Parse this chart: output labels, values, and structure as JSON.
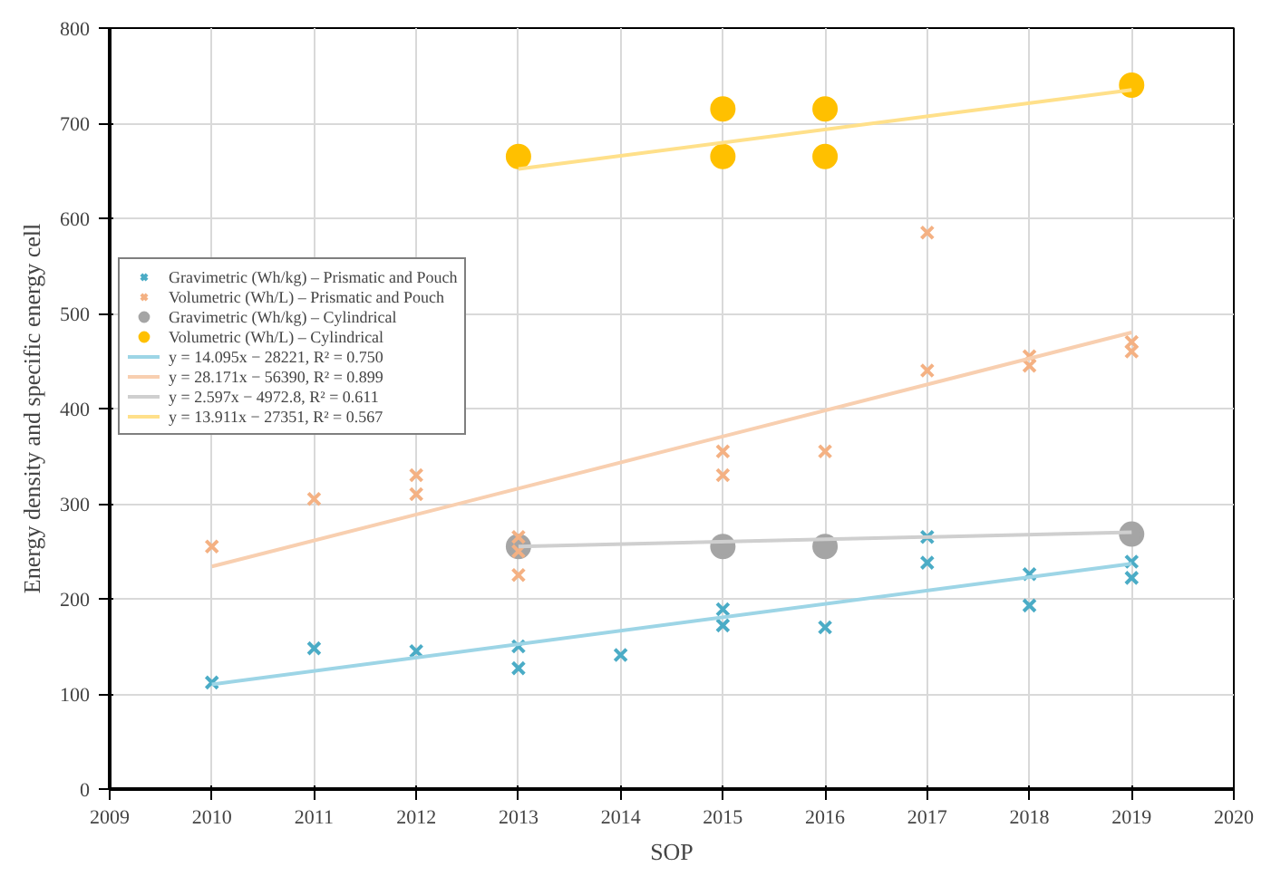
{
  "chart_data": {
    "type": "scatter",
    "xlabel": "SOP",
    "ylabel": "Energy density and specific energy cell",
    "xlim": [
      2009,
      2020
    ],
    "xticks": [
      2009,
      2010,
      2011,
      2012,
      2013,
      2014,
      2015,
      2016,
      2017,
      2018,
      2019,
      2020
    ],
    "ylim": [
      0,
      800
    ],
    "yticks": [
      0,
      100,
      200,
      300,
      400,
      500,
      600,
      700,
      800
    ],
    "grid": true,
    "legend": "left",
    "series": [
      {
        "name": "Gravimetric (Wh/kg) – Prismatic and Pouch",
        "color": "#4bacc6",
        "marker": "cross",
        "x": [
          2010,
          2011,
          2012,
          2013,
          2013,
          2014,
          2015,
          2015,
          2016,
          2017,
          2017,
          2018,
          2018,
          2019,
          2019
        ],
        "values": [
          112,
          148,
          145,
          150,
          127,
          141,
          189,
          172,
          170,
          265,
          238,
          226,
          193,
          239,
          222
        ]
      },
      {
        "name": "Volumetric (Wh/L) – Prismatic and Pouch",
        "color": "#f4b183",
        "marker": "cross",
        "x": [
          2010,
          2011,
          2012,
          2012,
          2013,
          2013,
          2013,
          2015,
          2015,
          2016,
          2017,
          2017,
          2018,
          2018,
          2019,
          2019
        ],
        "values": [
          255,
          305,
          330,
          310,
          265,
          250,
          225,
          355,
          330,
          355,
          585,
          440,
          455,
          445,
          470,
          460
        ]
      },
      {
        "name": "Gravimetric (Wh/kg) – Cylindrical",
        "color": "#a5a5a5",
        "marker": "circle",
        "x": [
          2013,
          2015,
          2016,
          2019
        ],
        "values": [
          255,
          255,
          255,
          268
        ]
      },
      {
        "name": "Volumetric (Wh/L) – Cylindrical",
        "color": "#ffc000",
        "marker": "circle",
        "x": [
          2013,
          2015,
          2015,
          2016,
          2016,
          2019
        ],
        "values": [
          665,
          715,
          665,
          715,
          665,
          740
        ]
      },
      {
        "name": "y = 14.095x − 28221, R² = 0.750",
        "type": "line",
        "color": "#9dd5e6",
        "x": [
          2010,
          2019
        ],
        "values": [
          110,
          237
        ]
      },
      {
        "name": "y = 28.171x − 56390, R² = 0.899",
        "type": "line",
        "color": "#f8cfb0",
        "x": [
          2010,
          2019
        ],
        "values": [
          234,
          480
        ]
      },
      {
        "name": "y = 2.597x − 4972.8, R² = 0.611",
        "type": "line",
        "color": "#cfcfcf",
        "x": [
          2013,
          2019
        ],
        "values": [
          255,
          270
        ]
      },
      {
        "name": "y = 13.911x − 27351, R² = 0.567",
        "type": "line",
        "color": "#ffe08a",
        "x": [
          2013,
          2019
        ],
        "values": [
          652,
          735
        ]
      }
    ]
  }
}
